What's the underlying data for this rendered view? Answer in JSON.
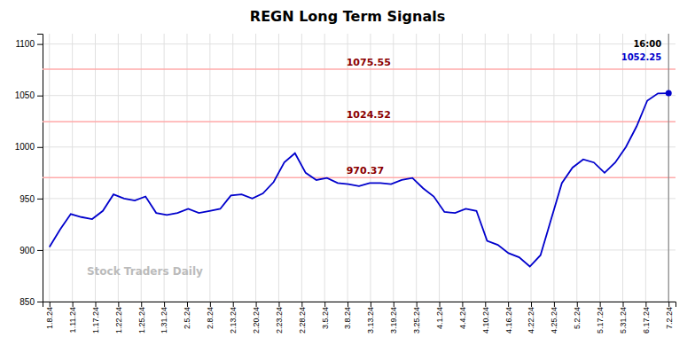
{
  "chart_data": {
    "type": "line",
    "title": "REGN Long Term Signals",
    "color": "#0000cc",
    "grid": true,
    "x": [
      0,
      0.465517,
      0.931034,
      1.396552,
      1.862069,
      2.327586,
      2.793103,
      3.258621,
      3.724138,
      4.189655,
      4.655172,
      5.12069,
      5.586207,
      6.051724,
      6.517241,
      6.982759,
      7.448276,
      7.913793,
      8.37931,
      8.844828,
      9.310345,
      9.775862,
      10.241379,
      10.706897,
      11.172414,
      11.637931,
      12.103448,
      12.568966,
      13.034483,
      13.5,
      13.965517,
      14.431034,
      14.896552,
      15.362069,
      15.827586,
      16.293103,
      16.758621,
      17.224138,
      17.689655,
      18.155172,
      18.62069,
      19.086207,
      19.551724,
      20.017241,
      20.482759,
      20.948276,
      21.413793,
      21.87931,
      22.344828,
      22.810345,
      23.275862,
      23.741379,
      24.206897,
      24.672414,
      25.137931,
      25.603448,
      26.068966,
      26.534483,
      27
    ],
    "values": [
      903,
      920,
      935,
      932,
      930,
      938,
      954,
      950,
      948,
      952,
      936,
      934,
      936,
      940,
      936,
      938,
      940,
      953,
      954,
      950,
      955,
      966,
      985,
      994,
      975,
      968,
      970,
      965,
      964,
      962,
      965,
      965,
      964,
      968,
      970,
      960,
      952,
      937,
      936,
      940,
      938,
      909,
      905,
      897,
      893,
      884,
      895,
      930,
      965,
      980,
      988,
      985,
      975,
      985,
      1000,
      1020,
      1045,
      1052,
      1052.25
    ],
    "xlim": [
      -0.3,
      27.3
    ],
    "xticks": [
      {
        "value": 0,
        "label": "1.8.24"
      },
      {
        "value": 1,
        "label": "1.11.24"
      },
      {
        "value": 2,
        "label": "1.17.24"
      },
      {
        "value": 3,
        "label": "1.22.24"
      },
      {
        "value": 4,
        "label": "1.25.24"
      },
      {
        "value": 5,
        "label": "1.31.24"
      },
      {
        "value": 6,
        "label": "2.5.24"
      },
      {
        "value": 7,
        "label": "2.8.24"
      },
      {
        "value": 8,
        "label": "2.13.24"
      },
      {
        "value": 9,
        "label": "2.20.24"
      },
      {
        "value": 10,
        "label": "2.23.24"
      },
      {
        "value": 11,
        "label": "2.28.24"
      },
      {
        "value": 12,
        "label": "3.5.24"
      },
      {
        "value": 13,
        "label": "3.8.24"
      },
      {
        "value": 14,
        "label": "3.13.24"
      },
      {
        "value": 15,
        "label": "3.19.24"
      },
      {
        "value": 16,
        "label": "3.25.24"
      },
      {
        "value": 17,
        "label": "4.1.24"
      },
      {
        "value": 18,
        "label": "4.4.24"
      },
      {
        "value": 19,
        "label": "4.10.24"
      },
      {
        "value": 20,
        "label": "4.16.24"
      },
      {
        "value": 21,
        "label": "4.22.24"
      },
      {
        "value": 22,
        "label": "4.25.24"
      },
      {
        "value": 23,
        "label": "5.2.24"
      },
      {
        "value": 24,
        "label": "5.17.24"
      },
      {
        "value": 25,
        "label": "5.31.24"
      },
      {
        "value": 26,
        "label": "6.17.24"
      },
      {
        "value": 27,
        "label": "7.2.24"
      }
    ],
    "ylim": [
      850,
      1110
    ],
    "yticks": [
      850,
      900,
      950,
      1000,
      1050,
      1100
    ],
    "hlines": [
      {
        "value": 970.37,
        "color": "#ffaaaa"
      },
      {
        "value": 1024.52,
        "color": "#ffaaaa"
      },
      {
        "value": 1075.55,
        "color": "#ffaaaa"
      }
    ],
    "annotations": [
      {
        "text": "16:00"
      },
      {
        "text": "1052.25",
        "color": "#0000cc"
      },
      {
        "text": "Stock Traders Daily"
      }
    ]
  }
}
